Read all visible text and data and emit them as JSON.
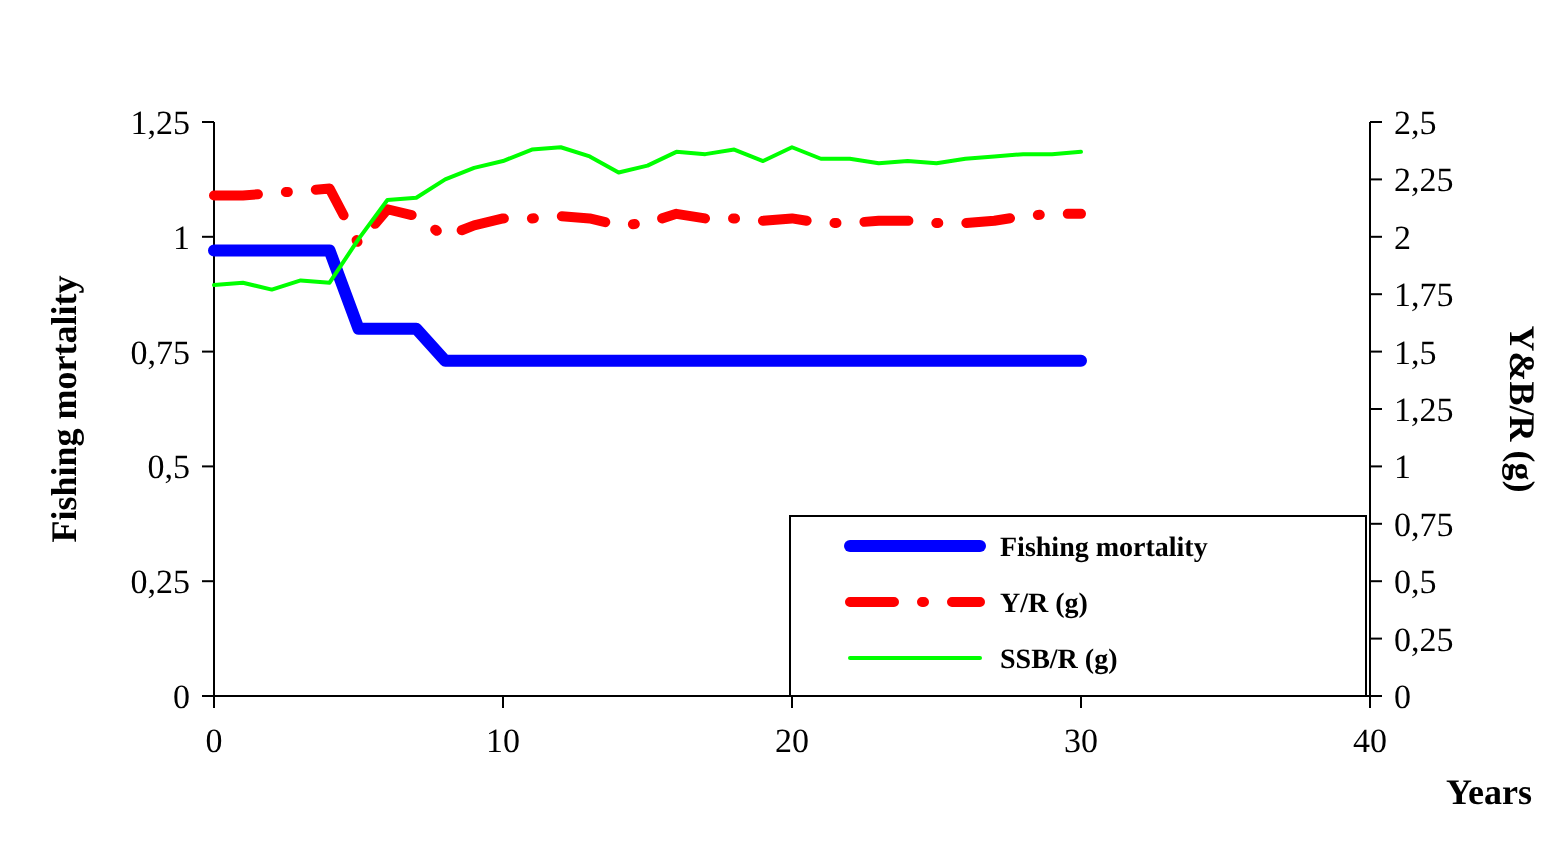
{
  "chart_data": {
    "type": "line",
    "xlabel": "Years",
    "ylabel": "Fishing mortality",
    "y2label": "Y&B/R (g)",
    "x": [
      0,
      1,
      2,
      3,
      4,
      5,
      6,
      7,
      8,
      9,
      10,
      11,
      12,
      13,
      14,
      15,
      16,
      17,
      18,
      19,
      20,
      21,
      22,
      23,
      24,
      25,
      26,
      27,
      28,
      29,
      30
    ],
    "series": [
      {
        "name": "Fishing mortality",
        "color": "#0000ff",
        "line_style": "solid",
        "values": [
          0.97,
          0.97,
          0.97,
          0.97,
          0.97,
          0.8,
          0.8,
          0.8,
          0.73,
          0.73,
          0.73,
          0.73,
          0.73,
          0.73,
          0.73,
          0.73,
          0.73,
          0.73,
          0.73,
          0.73,
          0.73,
          0.73,
          0.73,
          0.73,
          0.73,
          0.73,
          0.73,
          0.73,
          0.73,
          0.73,
          0.73
        ]
      },
      {
        "name": "Y/R (g)",
        "color": "#ff0000",
        "axis": "y2",
        "line_style": "dashdot",
        "values": [
          2.18,
          2.18,
          2.19,
          2.2,
          2.21,
          1.97,
          2.12,
          2.09,
          2.0,
          2.05,
          2.08,
          2.08,
          2.09,
          2.08,
          2.05,
          2.06,
          2.1,
          2.08,
          2.08,
          2.07,
          2.08,
          2.06,
          2.06,
          2.07,
          2.07,
          2.06,
          2.06,
          2.07,
          2.09,
          2.1,
          2.1
        ]
      },
      {
        "name": "SSB/R (g)",
        "color": "#00ff00",
        "axis": "y2",
        "line_style": "solid",
        "values": [
          1.79,
          1.8,
          1.77,
          1.81,
          1.8,
          1.99,
          2.16,
          2.17,
          2.25,
          2.3,
          2.33,
          2.38,
          2.39,
          2.35,
          2.28,
          2.31,
          2.37,
          2.36,
          2.38,
          2.33,
          2.39,
          2.34,
          2.34,
          2.32,
          2.33,
          2.32,
          2.34,
          2.35,
          2.36,
          2.36,
          2.37
        ]
      }
    ],
    "xlim": [
      0,
      40
    ],
    "xticks": [
      0,
      10,
      20,
      30,
      40
    ],
    "ylim": [
      0,
      1.25
    ],
    "yticks": [
      0,
      {
        "value": 0.25,
        "label": "0,25"
      },
      {
        "value": 0.5,
        "label": "0,5"
      },
      {
        "value": 0.75,
        "label": "0,75"
      },
      1,
      {
        "value": 1.25,
        "label": "1,25"
      }
    ],
    "y2lim": [
      0,
      2.5
    ],
    "y2ticks": [
      0,
      {
        "value": 0.25,
        "label": "0,25"
      },
      {
        "value": 0.5,
        "label": "0,5"
      },
      {
        "value": 0.75,
        "label": "0,75"
      },
      1,
      {
        "value": 1.25,
        "label": "1,25"
      },
      {
        "value": 1.5,
        "label": "1,5"
      },
      {
        "value": 1.75,
        "label": "1,75"
      },
      2,
      {
        "value": 2.25,
        "label": "2,25"
      },
      {
        "value": 2.5,
        "label": "2,5"
      }
    ],
    "grid": false,
    "legend": "bottom right"
  }
}
